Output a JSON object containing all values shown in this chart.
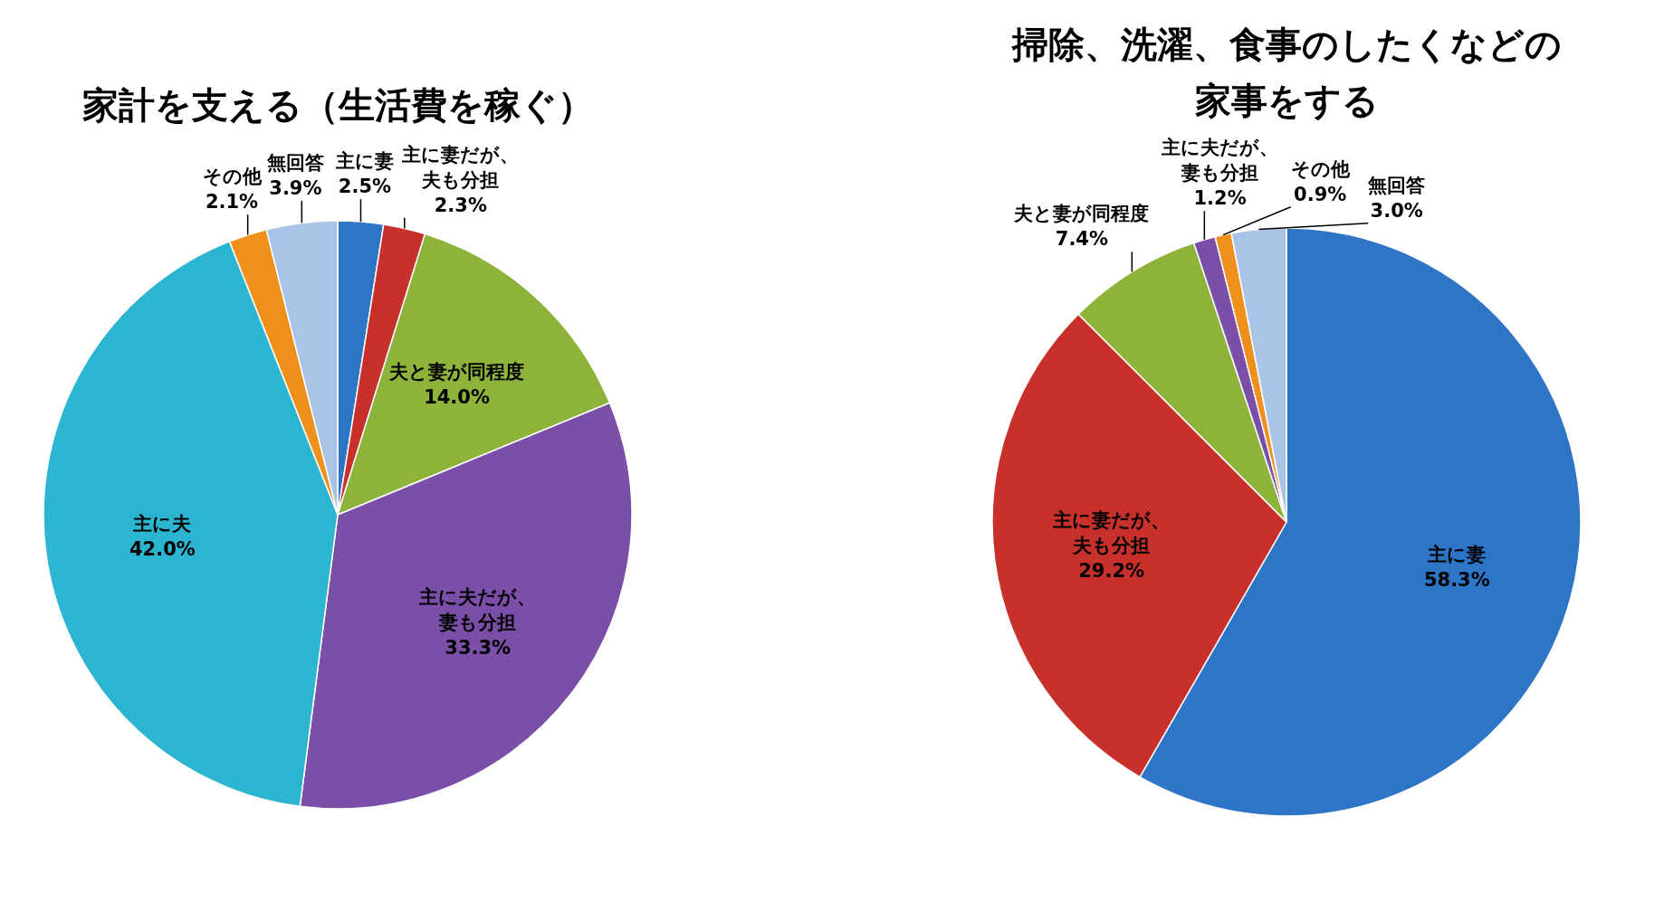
{
  "chart_data": [
    {
      "type": "pie",
      "title": "家計を支える（生活費を稼ぐ）",
      "categories": [
        "主に妻",
        "主に妻だが、夫も分担",
        "夫と妻が同程度",
        "主に夫だが、妻も分担",
        "主に夫",
        "その他",
        "無回答"
      ],
      "values": [
        2.5,
        2.3,
        14.0,
        33.3,
        42.0,
        2.1,
        3.9
      ],
      "value_labels": [
        "2.5%",
        "2.3%",
        "14.0%",
        "33.3%",
        "42.0%",
        "2.1%",
        "3.9%"
      ],
      "colors": [
        "#2e75c8",
        "#c8302c",
        "#8db33a",
        "#7b4fa8",
        "#2bb5d0",
        "#f0901c",
        "#a9c4e6"
      ]
    },
    {
      "type": "pie",
      "title": "掃除、洗濯、食事のしたくなどの家事をする",
      "categories": [
        "主に妻",
        "主に妻だが、夫も分担",
        "夫と妻が同程度",
        "主に夫だが、妻も分担",
        "その他",
        "無回答"
      ],
      "values": [
        58.3,
        29.2,
        7.4,
        1.2,
        0.9,
        3.0
      ],
      "value_labels": [
        "58.3%",
        "29.2%",
        "7.4%",
        "1.2%",
        "0.9%",
        "3.0%"
      ],
      "colors": [
        "#2e75c8",
        "#c8302c",
        "#8db33a",
        "#7b4fa8",
        "#f0901c",
        "#a9c4e6"
      ]
    }
  ]
}
